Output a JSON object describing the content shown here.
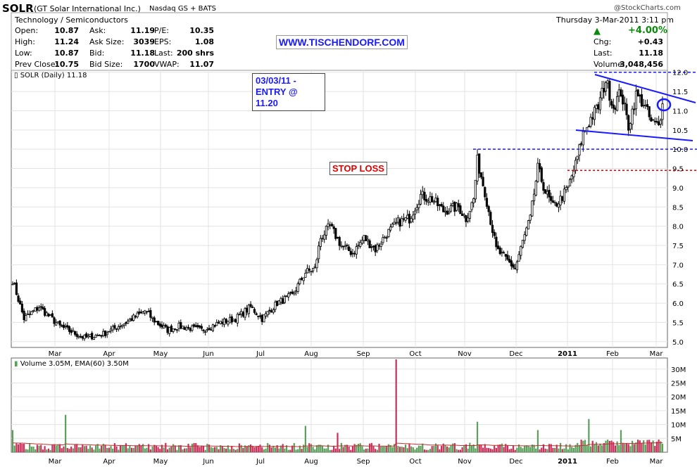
{
  "header": {
    "symbol": "SOLR",
    "company": "(GT Solar International Inc.)",
    "exchange": "Nasdaq GS + BATS",
    "sector": "Technology / Semiconductors",
    "watermark": "@StockCharts.com",
    "date_line": "Thursday  3-Mar-2011  3:11 pm",
    "pct_change": "+4.00%",
    "stats_left": [
      {
        "label": "Open:",
        "value": "10.87"
      },
      {
        "label": "High:",
        "value": "11.24"
      },
      {
        "label": "Low:",
        "value": "10.87"
      },
      {
        "label": "Prev Close:",
        "value": "10.75"
      }
    ],
    "stats_mid": [
      {
        "label": "Ask:",
        "value": "11.19"
      },
      {
        "label": "Ask Size:",
        "value": "3039"
      },
      {
        "label": "Bid:",
        "value": "11.18"
      },
      {
        "label": "Bid Size:",
        "value": "1700"
      }
    ],
    "stats_right": [
      {
        "label": "P/E:",
        "value": "10.35"
      },
      {
        "label": "EPS:",
        "value": "1.08"
      },
      {
        "label": "Last:",
        "value": "200 shrs"
      },
      {
        "label": "VWAP:",
        "value": "11.07"
      }
    ],
    "stats_far": [
      {
        "label": "Chg:",
        "value": "+0.43"
      },
      {
        "label": "Last:",
        "value": "11.18"
      },
      {
        "label": "Volume:",
        "value": "3,048,456"
      }
    ]
  },
  "annotations": {
    "website": "WWW.TISCHENDORF.COM",
    "entry_line1": "03/03/11 -",
    "entry_line2": "ENTRY @ 11.20",
    "stop_loss": "STOP LOSS"
  },
  "colors": {
    "up_arrow": "#0a8a0a",
    "trendline": "#1a1aff",
    "stop_line": "#e00000",
    "vol_up": "#5aa05a",
    "vol_down": "#c8305a"
  },
  "chart_data": [
    {
      "type": "candlestick",
      "legend": "SOLR (Daily) 11.18",
      "x_labels": [
        "Mar",
        "Apr",
        "May",
        "Jun",
        "Jul",
        "Aug",
        "Sep",
        "Oct",
        "Nov",
        "Dec",
        "2011",
        "Feb",
        "Mar"
      ],
      "y_ticks": [
        "12.0",
        "11.5",
        "11.0",
        "10.5",
        "10.0",
        "9.5",
        "9.0",
        "8.5",
        "8.0",
        "7.5",
        "7.0",
        "6.5",
        "6.0",
        "5.5",
        "5.0"
      ],
      "ylim": [
        4.85,
        12.05
      ],
      "grid": true,
      "price_anchors": [
        {
          "i": 0,
          "p": 6.6
        },
        {
          "i": 6,
          "p": 5.6
        },
        {
          "i": 14,
          "p": 5.9
        },
        {
          "i": 25,
          "p": 5.4
        },
        {
          "i": 38,
          "p": 5.1
        },
        {
          "i": 48,
          "p": 5.2
        },
        {
          "i": 60,
          "p": 5.5
        },
        {
          "i": 70,
          "p": 5.8
        },
        {
          "i": 76,
          "p": 5.5
        },
        {
          "i": 82,
          "p": 5.3
        },
        {
          "i": 88,
          "p": 5.4
        },
        {
          "i": 100,
          "p": 5.3
        },
        {
          "i": 110,
          "p": 5.5
        },
        {
          "i": 118,
          "p": 5.6
        },
        {
          "i": 126,
          "p": 5.9
        },
        {
          "i": 132,
          "p": 5.6
        },
        {
          "i": 140,
          "p": 6.0
        },
        {
          "i": 148,
          "p": 6.2
        },
        {
          "i": 155,
          "p": 6.8
        },
        {
          "i": 160,
          "p": 6.9
        },
        {
          "i": 163,
          "p": 7.7
        },
        {
          "i": 168,
          "p": 8.0
        },
        {
          "i": 174,
          "p": 7.5
        },
        {
          "i": 180,
          "p": 7.3
        },
        {
          "i": 186,
          "p": 7.7
        },
        {
          "i": 192,
          "p": 7.4
        },
        {
          "i": 198,
          "p": 7.8
        },
        {
          "i": 204,
          "p": 8.1
        },
        {
          "i": 210,
          "p": 8.2
        },
        {
          "i": 216,
          "p": 8.8
        },
        {
          "i": 222,
          "p": 8.7
        },
        {
          "i": 228,
          "p": 8.4
        },
        {
          "i": 236,
          "p": 8.5
        },
        {
          "i": 240,
          "p": 8.2
        },
        {
          "i": 244,
          "p": 8.7
        },
        {
          "i": 246,
          "p": 9.7
        },
        {
          "i": 250,
          "p": 8.9
        },
        {
          "i": 256,
          "p": 7.4
        },
        {
          "i": 262,
          "p": 7.1
        },
        {
          "i": 266,
          "p": 6.9
        },
        {
          "i": 270,
          "p": 7.6
        },
        {
          "i": 274,
          "p": 8.2
        },
        {
          "i": 278,
          "p": 9.5
        },
        {
          "i": 282,
          "p": 8.9
        },
        {
          "i": 286,
          "p": 8.5
        },
        {
          "i": 290,
          "p": 8.7
        },
        {
          "i": 294,
          "p": 9.0
        },
        {
          "i": 298,
          "p": 9.6
        },
        {
          "i": 302,
          "p": 10.4
        },
        {
          "i": 306,
          "p": 10.8
        },
        {
          "i": 310,
          "p": 11.1
        },
        {
          "i": 314,
          "p": 11.8
        },
        {
          "i": 318,
          "p": 11.1
        },
        {
          "i": 322,
          "p": 11.5
        },
        {
          "i": 326,
          "p": 10.6
        },
        {
          "i": 330,
          "p": 11.4
        },
        {
          "i": 334,
          "p": 11.2
        },
        {
          "i": 338,
          "p": 10.7
        },
        {
          "i": 342,
          "p": 10.6
        },
        {
          "i": 344,
          "p": 11.18
        }
      ],
      "lines": [
        {
          "name": "resistance",
          "price": 12.0,
          "from": "Feb"
        },
        {
          "name": "support",
          "price": 10.0,
          "from": "Nov"
        },
        {
          "name": "stop-loss",
          "price": 9.45,
          "from": "Jan"
        }
      ]
    },
    {
      "type": "bar",
      "legend": "Volume 3.05M, EMA(60) 3.50M",
      "y_ticks": [
        "30M",
        "25M",
        "20M",
        "15M",
        "10M",
        "5M"
      ],
      "ylim": [
        0,
        34
      ],
      "spikes_millions": [
        {
          "i": 0,
          "v": 8,
          "up": true
        },
        {
          "i": 28,
          "v": 13.5,
          "up": true
        },
        {
          "i": 155,
          "v": 9.5,
          "up": true
        },
        {
          "i": 172,
          "v": 7,
          "up": false
        },
        {
          "i": 203,
          "v": 33.5,
          "up": false
        },
        {
          "i": 246,
          "v": 11,
          "up": true
        },
        {
          "i": 278,
          "v": 8,
          "up": true
        },
        {
          "i": 305,
          "v": 12,
          "up": true
        },
        {
          "i": 322,
          "v": 8,
          "up": true
        },
        {
          "i": 344,
          "v": 3.05,
          "up": true
        }
      ]
    }
  ]
}
